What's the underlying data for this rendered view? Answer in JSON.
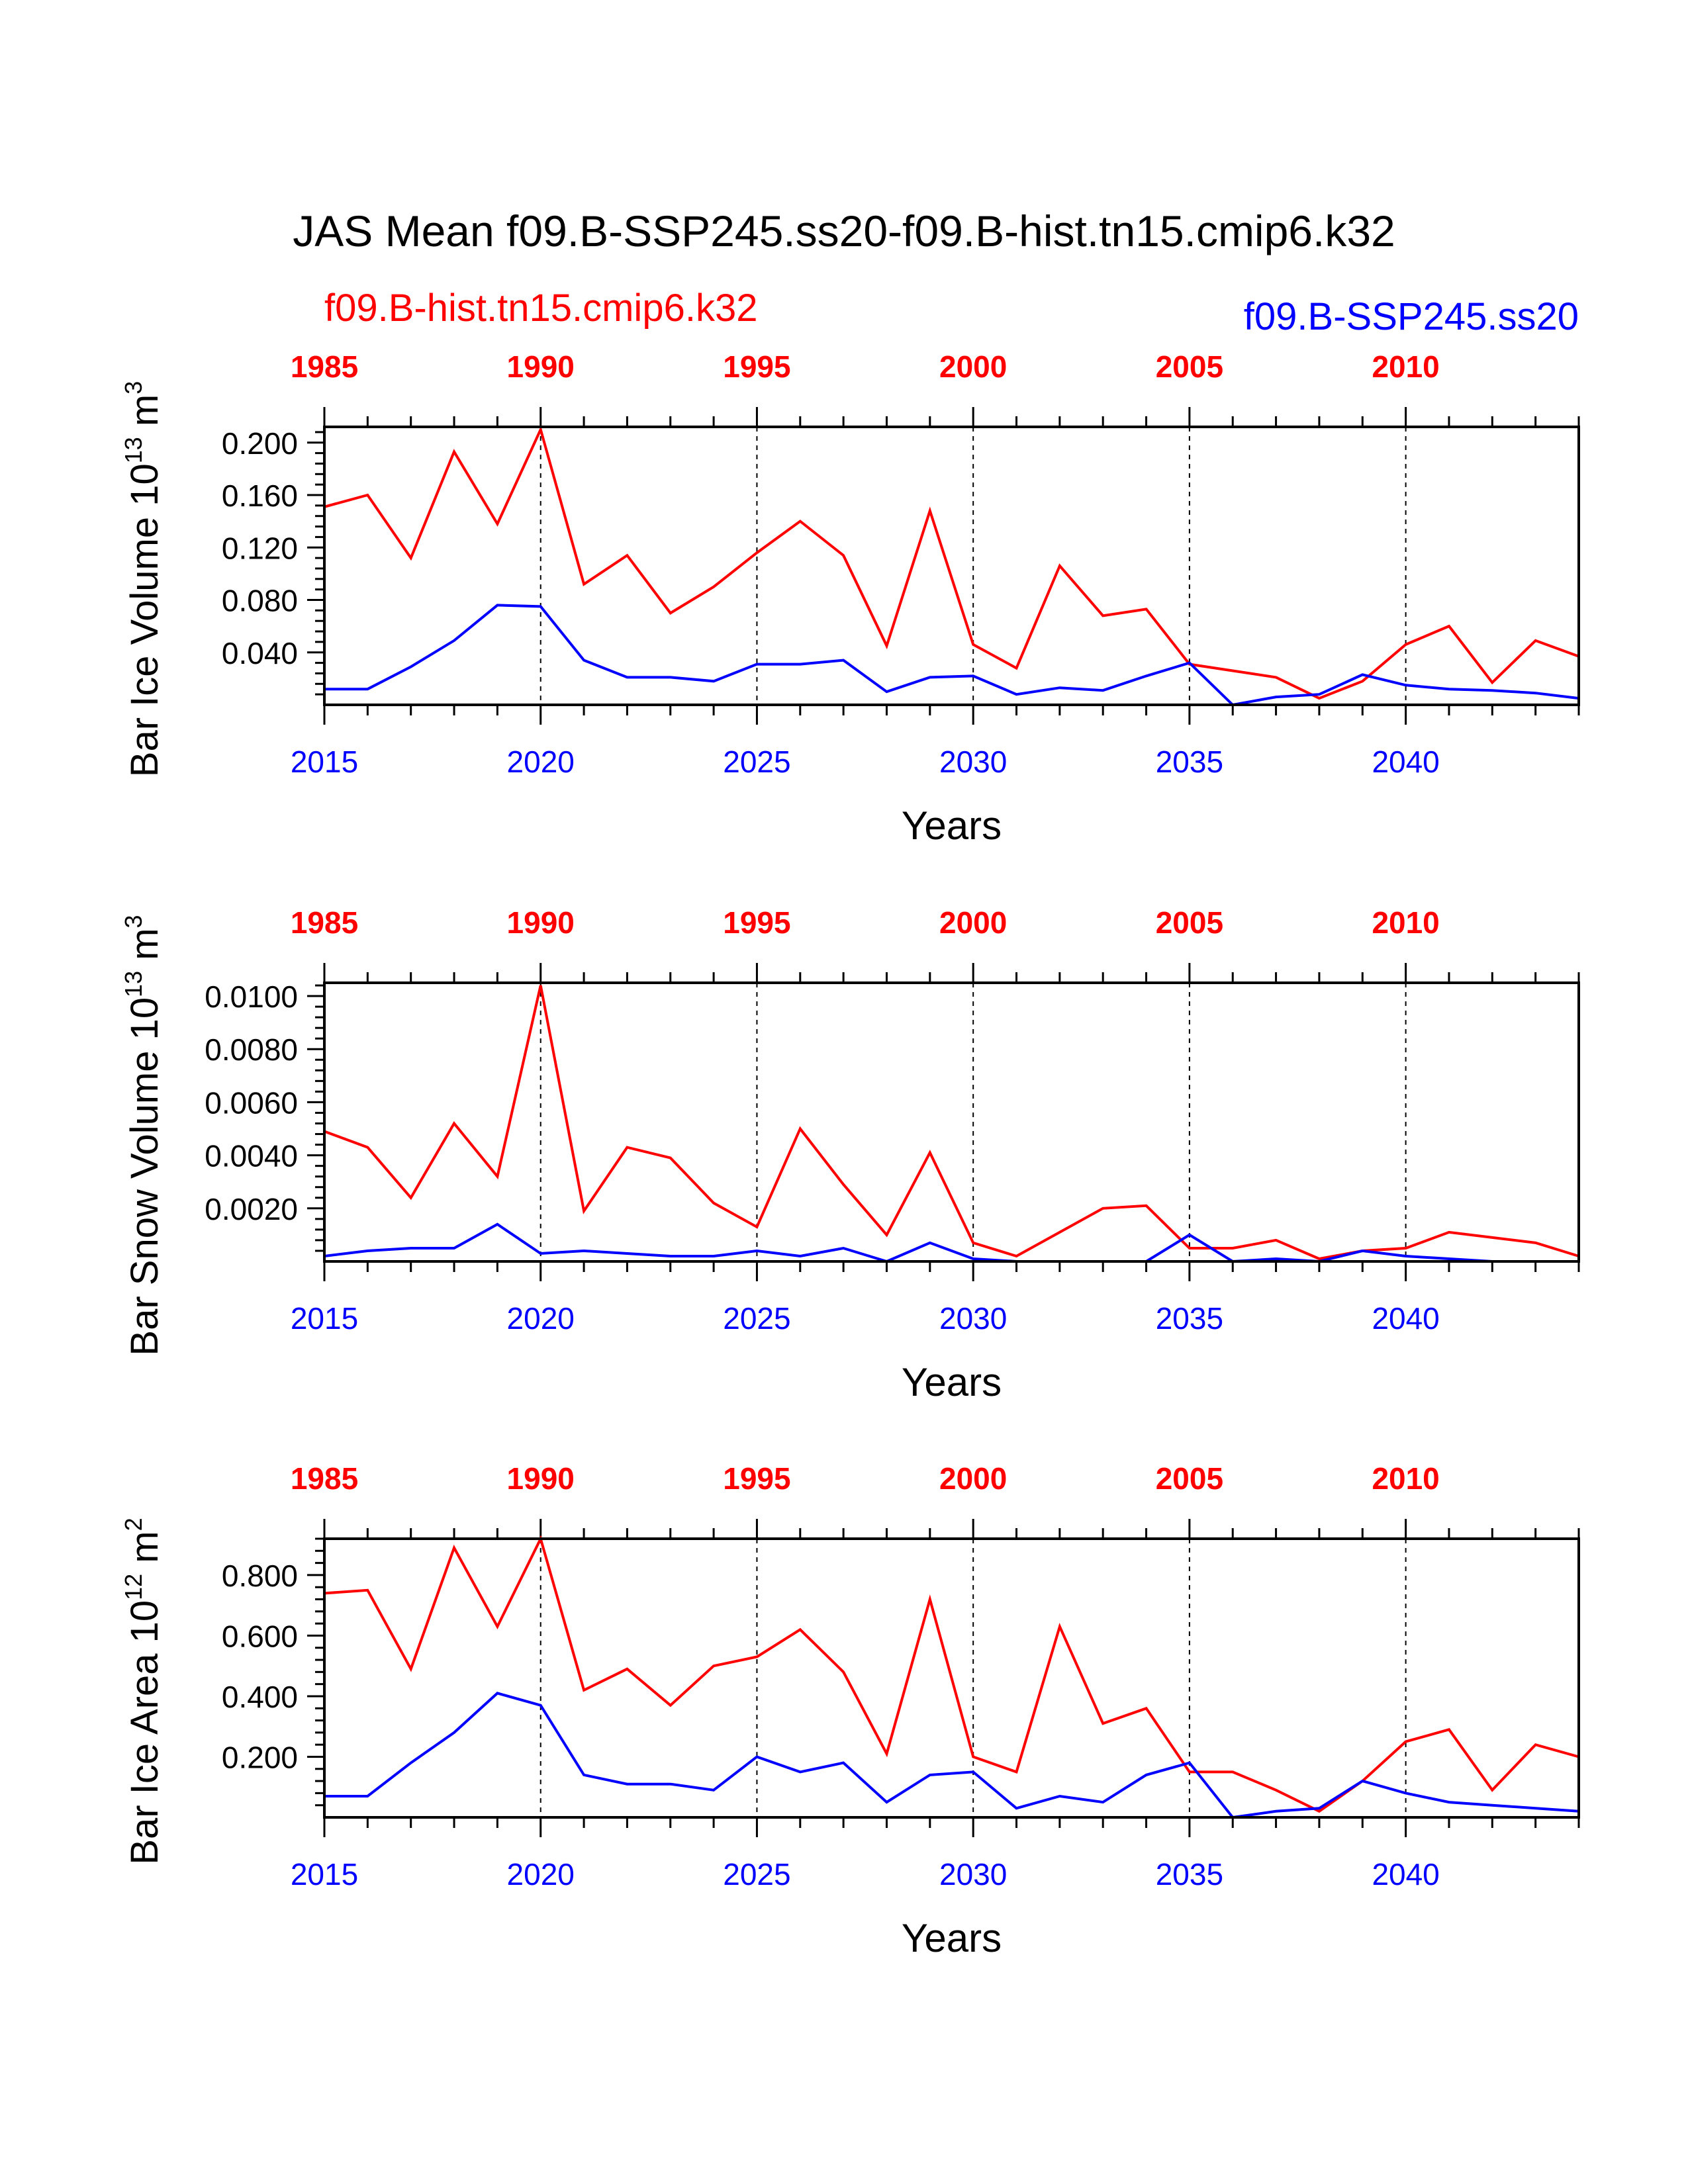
{
  "title": "JAS Mean f09.B-SSP245.ss20-f09.B-hist.tn15.cmip6.k32",
  "legend": {
    "left": "f09.B-hist.tn15.cmip6.k32",
    "right": "f09.B-SSP245.ss20"
  },
  "colors": {
    "hist": "#ff0000",
    "ssp": "#0000ff",
    "axis": "#000000"
  },
  "chart_data": [
    {
      "type": "line",
      "ylabel": "Bar Ice Volume 10",
      "ylabel_exp": "13",
      "ylabel_unit": "m",
      "ylabel_unit_exp": "3",
      "xlabel": "Years",
      "ylim": [
        0.0,
        0.212
      ],
      "yticks": [
        0.04,
        0.08,
        0.12,
        0.16,
        0.2
      ],
      "ytick_labels": [
        "0.040",
        "0.080",
        "0.120",
        "0.160",
        "0.200"
      ],
      "ytick_minor_step": 0.008,
      "xlim": [
        2015,
        2044
      ],
      "bottom_ticks": [
        2015,
        2020,
        2025,
        2030,
        2035,
        2040
      ],
      "bottom_tick_labels": [
        "2015",
        "2020",
        "2025",
        "2030",
        "2035",
        "2040"
      ],
      "top_tick_labels": [
        "1985",
        "1990",
        "1995",
        "2000",
        "2005",
        "2010"
      ],
      "grid": "dashed vertical every 5 years",
      "series": [
        {
          "name": "f09.B-hist.tn15.cmip6.k32",
          "color": "#ff0000",
          "x": [
            2015,
            2016,
            2017,
            2018,
            2019,
            2020,
            2021,
            2022,
            2023,
            2024,
            2025,
            2026,
            2027,
            2028,
            2029,
            2030,
            2031,
            2032,
            2033,
            2034,
            2035,
            2036,
            2037,
            2038,
            2039,
            2040,
            2041,
            2042,
            2043,
            2044
          ],
          "values": [
            0.151,
            0.16,
            0.112,
            0.193,
            0.138,
            0.21,
            0.092,
            0.114,
            0.07,
            0.09,
            0.116,
            0.14,
            0.114,
            0.045,
            0.148,
            0.046,
            0.028,
            0.106,
            0.068,
            0.073,
            0.031,
            0.026,
            0.021,
            0.005,
            0.018,
            0.046,
            0.06,
            0.017,
            0.049,
            0.037
          ]
        },
        {
          "name": "f09.B-SSP245.ss20",
          "color": "#0000ff",
          "x": [
            2015,
            2016,
            2017,
            2018,
            2019,
            2020,
            2021,
            2022,
            2023,
            2024,
            2025,
            2026,
            2027,
            2028,
            2029,
            2030,
            2031,
            2032,
            2033,
            2034,
            2035,
            2036,
            2037,
            2038,
            2039,
            2040,
            2041,
            2042,
            2043,
            2044
          ],
          "values": [
            0.012,
            0.012,
            0.029,
            0.049,
            0.076,
            0.075,
            0.034,
            0.021,
            0.021,
            0.018,
            0.031,
            0.031,
            0.034,
            0.01,
            0.021,
            0.022,
            0.008,
            0.013,
            0.011,
            0.022,
            0.032,
            0.0,
            0.006,
            0.008,
            0.023,
            0.015,
            0.012,
            0.011,
            0.009,
            0.005
          ]
        }
      ]
    },
    {
      "type": "line",
      "ylabel": "Bar Snow Volume 10",
      "ylabel_exp": "13",
      "ylabel_unit": "m",
      "ylabel_unit_exp": "3",
      "xlabel": "Years",
      "ylim": [
        0.0,
        0.0105
      ],
      "yticks": [
        0.002,
        0.004,
        0.006,
        0.008,
        0.01
      ],
      "ytick_labels": [
        "0.0020",
        "0.0040",
        "0.0060",
        "0.0080",
        "0.0100"
      ],
      "ytick_minor_step": 0.0004,
      "xlim": [
        2015,
        2044
      ],
      "bottom_ticks": [
        2015,
        2020,
        2025,
        2030,
        2035,
        2040
      ],
      "bottom_tick_labels": [
        "2015",
        "2020",
        "2025",
        "2030",
        "2035",
        "2040"
      ],
      "top_tick_labels": [
        "1985",
        "1990",
        "1995",
        "2000",
        "2005",
        "2010"
      ],
      "grid": "dashed vertical every 5 years",
      "series": [
        {
          "name": "f09.B-hist.tn15.cmip6.k32",
          "color": "#ff0000",
          "x": [
            2015,
            2016,
            2017,
            2018,
            2019,
            2020,
            2021,
            2022,
            2023,
            2024,
            2025,
            2026,
            2027,
            2028,
            2029,
            2030,
            2031,
            2032,
            2033,
            2034,
            2035,
            2036,
            2037,
            2038,
            2039,
            2040,
            2041,
            2042,
            2043,
            2044
          ],
          "values": [
            0.0049,
            0.0043,
            0.0024,
            0.0052,
            0.0032,
            0.0104,
            0.0019,
            0.0043,
            0.0039,
            0.0022,
            0.0013,
            0.005,
            0.0029,
            0.001,
            0.0041,
            0.0007,
            0.0002,
            0.0011,
            0.002,
            0.0021,
            0.0005,
            0.0005,
            0.0008,
            0.0001,
            0.0004,
            0.0005,
            0.0011,
            0.0009,
            0.0007,
            0.0002
          ]
        },
        {
          "name": "f09.B-SSP245.ss20",
          "color": "#0000ff",
          "x": [
            2015,
            2016,
            2017,
            2018,
            2019,
            2020,
            2021,
            2022,
            2023,
            2024,
            2025,
            2026,
            2027,
            2028,
            2029,
            2030,
            2031,
            2032,
            2033,
            2034,
            2035,
            2036,
            2037,
            2038,
            2039,
            2040,
            2041,
            2042,
            2043,
            2044
          ],
          "values": [
            0.0002,
            0.0004,
            0.0005,
            0.0005,
            0.0014,
            0.0003,
            0.0004,
            0.0003,
            0.0002,
            0.0002,
            0.0004,
            0.0002,
            0.0005,
            0.0,
            0.0007,
            0.0001,
            0.0,
            0.0,
            0.0,
            0.0,
            0.001,
            0.0,
            0.0001,
            0.0,
            0.0004,
            0.0002,
            0.0001,
            0.0,
            0.0,
            0.0
          ]
        }
      ]
    },
    {
      "type": "line",
      "ylabel": "Bar Ice Area 10",
      "ylabel_exp": "12",
      "ylabel_unit": "m",
      "ylabel_unit_exp": "2",
      "xlabel": "Years",
      "ylim": [
        0.0,
        0.92
      ],
      "yticks": [
        0.2,
        0.4,
        0.6,
        0.8
      ],
      "ytick_labels": [
        "0.200",
        "0.400",
        "0.600",
        "0.800"
      ],
      "ytick_minor_step": 0.04,
      "xlim": [
        2015,
        2044
      ],
      "bottom_ticks": [
        2015,
        2020,
        2025,
        2030,
        2035,
        2040
      ],
      "bottom_tick_labels": [
        "2015",
        "2020",
        "2025",
        "2030",
        "2035",
        "2040"
      ],
      "top_tick_labels": [
        "1985",
        "1990",
        "1995",
        "2000",
        "2005",
        "2010"
      ],
      "grid": "dashed vertical every 5 years",
      "series": [
        {
          "name": "f09.B-hist.tn15.cmip6.k32",
          "color": "#ff0000",
          "x": [
            2015,
            2016,
            2017,
            2018,
            2019,
            2020,
            2021,
            2022,
            2023,
            2024,
            2025,
            2026,
            2027,
            2028,
            2029,
            2030,
            2031,
            2032,
            2033,
            2034,
            2035,
            2036,
            2037,
            2038,
            2039,
            2040,
            2041,
            2042,
            2043,
            2044
          ],
          "values": [
            0.74,
            0.75,
            0.49,
            0.89,
            0.63,
            0.92,
            0.42,
            0.49,
            0.37,
            0.5,
            0.53,
            0.62,
            0.48,
            0.21,
            0.72,
            0.2,
            0.15,
            0.63,
            0.31,
            0.36,
            0.15,
            0.15,
            0.09,
            0.02,
            0.12,
            0.25,
            0.29,
            0.09,
            0.24,
            0.2
          ]
        },
        {
          "name": "f09.B-SSP245.ss20",
          "color": "#0000ff",
          "x": [
            2015,
            2016,
            2017,
            2018,
            2019,
            2020,
            2021,
            2022,
            2023,
            2024,
            2025,
            2026,
            2027,
            2028,
            2029,
            2030,
            2031,
            2032,
            2033,
            2034,
            2035,
            2036,
            2037,
            2038,
            2039,
            2040,
            2041,
            2042,
            2043,
            2044
          ],
          "values": [
            0.07,
            0.07,
            0.18,
            0.28,
            0.41,
            0.37,
            0.14,
            0.11,
            0.11,
            0.09,
            0.2,
            0.15,
            0.18,
            0.05,
            0.14,
            0.15,
            0.03,
            0.07,
            0.05,
            0.14,
            0.18,
            0.0,
            0.02,
            0.03,
            0.12,
            0.08,
            0.05,
            0.04,
            0.03,
            0.02
          ]
        }
      ]
    }
  ]
}
